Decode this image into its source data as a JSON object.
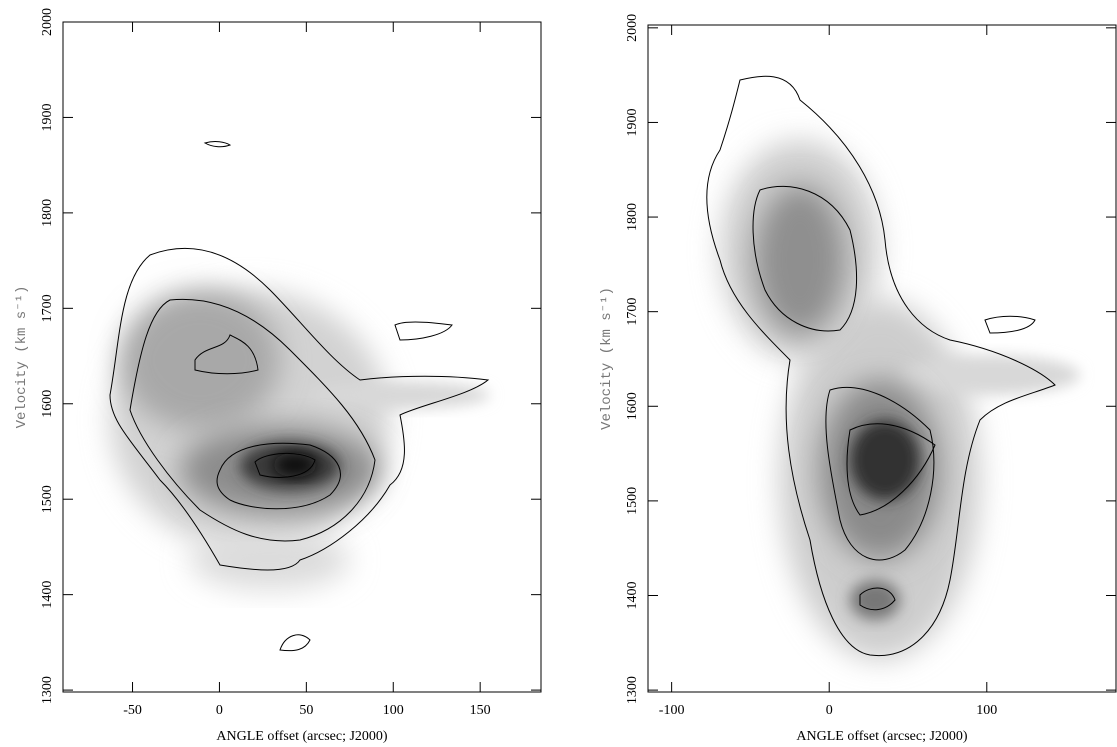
{
  "chart_data": [
    {
      "type": "contour",
      "x_label": "ANGLE offset (arcsec; J2000)",
      "y_label": "Velocity (km s⁻¹)",
      "xlim": [
        -90,
        185
      ],
      "xticks": [
        -50,
        0,
        50,
        100,
        150
      ],
      "ylim": [
        1298,
        2000
      ],
      "yticks": [
        1300,
        1400,
        1500,
        1600,
        1700,
        1800,
        1900,
        2000
      ]
    },
    {
      "type": "contour",
      "x_label": "ANGLE offset (arcsec; J2000)",
      "y_label": "Velocity (km s⁻¹)",
      "xlim": [
        -115,
        182
      ],
      "xticks": [
        -100,
        0,
        100
      ],
      "ylim": [
        1298,
        2003
      ],
      "yticks": [
        1300,
        1400,
        1500,
        1600,
        1700,
        1800,
        1900,
        2000
      ]
    }
  ]
}
